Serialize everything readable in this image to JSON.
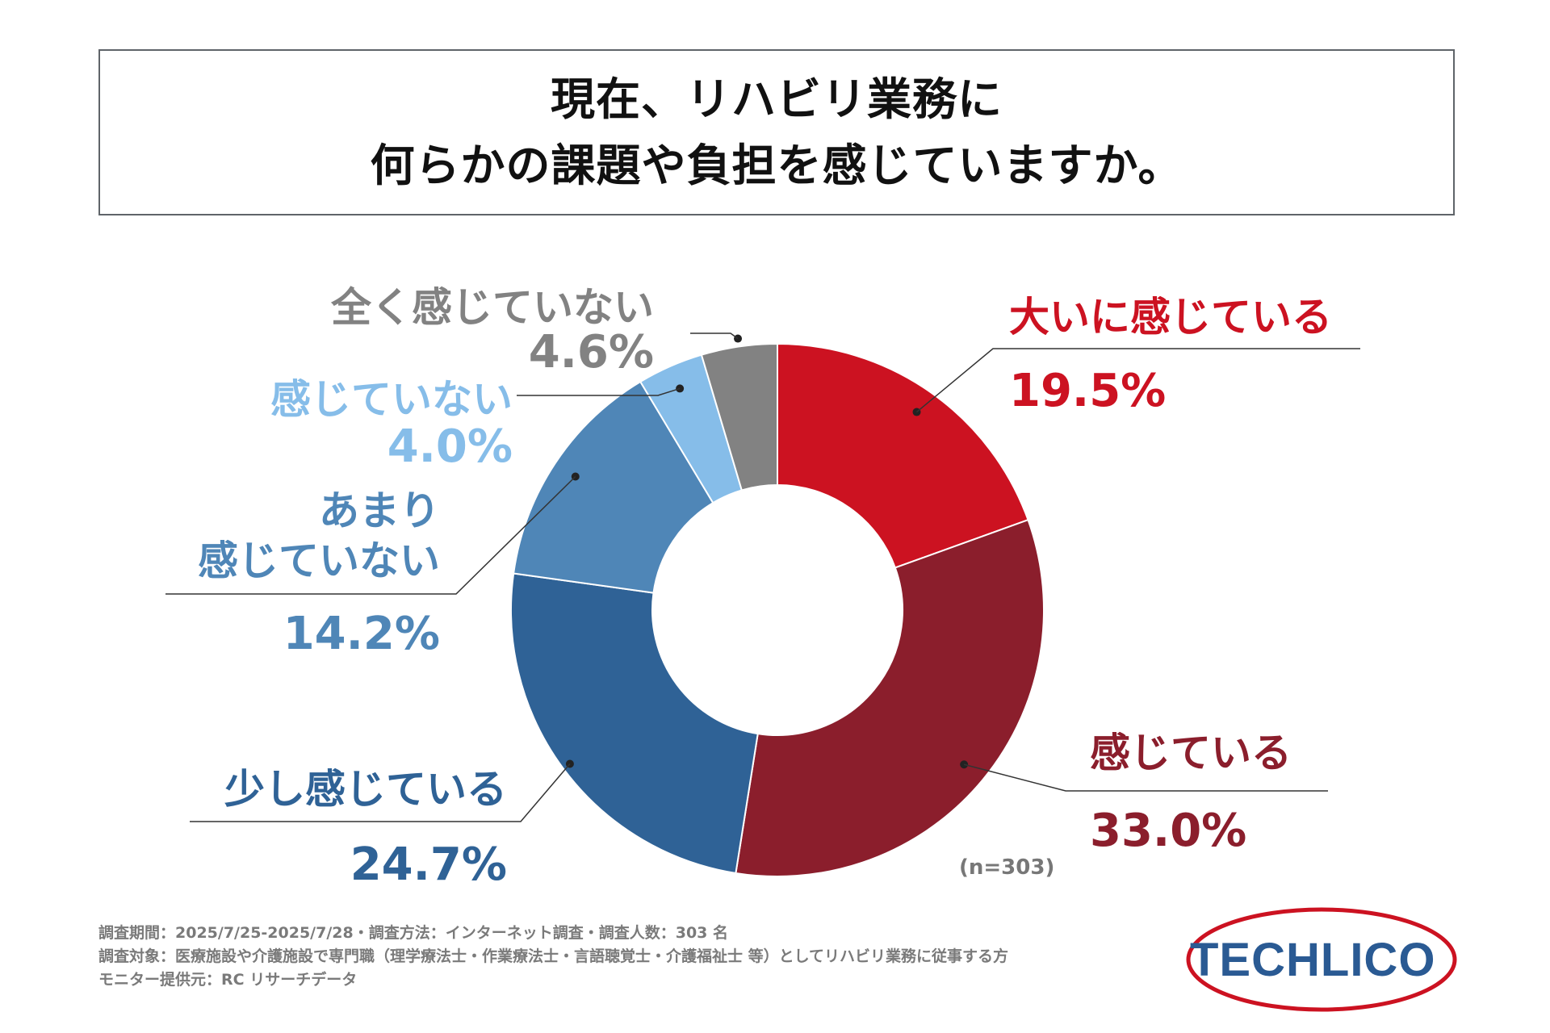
{
  "title": {
    "line1": "現在、リハビリ業務に",
    "line2": "何らかの課題や負担を感じていますか。"
  },
  "chart_data": {
    "type": "pie",
    "donut": true,
    "sample_note": "(n=303)",
    "categories": [
      "大いに感じている",
      "感じている",
      "少し感じている",
      "あまり感じていない",
      "感じていない",
      "全く感じていない"
    ],
    "values": [
      19.5,
      33.0,
      24.7,
      14.2,
      4.0,
      4.6
    ],
    "value_labels": [
      "19.5%",
      "33.0%",
      "24.7%",
      "14.2%",
      "4.0%",
      "4.6%"
    ],
    "label_lines": [
      [
        "大いに感じている"
      ],
      [
        "感じている"
      ],
      [
        "少し感じている"
      ],
      [
        "あまり",
        "感じていない"
      ],
      [
        "感じていない"
      ],
      [
        "全く感じていない"
      ]
    ],
    "colors": [
      "#cc1221",
      "#8b1e2c",
      "#2f6296",
      "#4f86b7",
      "#86bde9",
      "#828282"
    ],
    "label_colors": [
      "#cc1221",
      "#8b1e2c",
      "#2f6296",
      "#4f86b7",
      "#86bde9",
      "#828282"
    ]
  },
  "footer": {
    "line1": "調査期間：2025/7/25-2025/7/28・調査方法：インターネット調査・調査人数：303 名",
    "line2": "調査対象：医療施設や介護施設で専門職（理学療法士・作業療法士・言語聴覚士・介護福祉士 等）としてリハビリ業務に従事する方",
    "line3": "モニター提供元：RC リサーチデータ"
  },
  "logo": {
    "text": "TECHLICO",
    "text_color": "#2a5a93",
    "ring_color": "#cc1221"
  }
}
